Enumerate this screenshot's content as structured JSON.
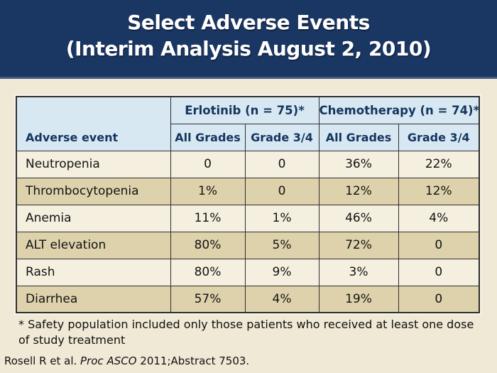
{
  "slide": {
    "title_line1": "Select Adverse Events",
    "title_line2": "(Interim Analysis August 2, 2010)",
    "footnote_line1": "* Safety population included only those patients who received at least one dose",
    "footnote_line2": "of study treatment",
    "citation": {
      "pre": "Rosell R et al. ",
      "italic": "Proc ASCO",
      "post": " 2011;Abstract 7503."
    }
  },
  "table": {
    "corner_label": "Adverse event",
    "groups": [
      {
        "label": "Erlotinib (n = 75)*"
      },
      {
        "label": "Chemotherapy (n = 74)*"
      }
    ],
    "subheaders": [
      "All Grades",
      "Grade 3/4",
      "All Grades",
      "Grade 3/4"
    ],
    "rows": [
      {
        "event": "Neutropenia",
        "values": [
          "0",
          "0",
          "36%",
          "22%"
        ]
      },
      {
        "event": "Thrombocytopenia",
        "values": [
          "1%",
          "0",
          "12%",
          "12%"
        ]
      },
      {
        "event": "Anemia",
        "values": [
          "11%",
          "1%",
          "46%",
          "4%"
        ]
      },
      {
        "event": "ALT elevation",
        "values": [
          "80%",
          "5%",
          "72%",
          "0"
        ]
      },
      {
        "event": "Rash",
        "values": [
          "80%",
          "9%",
          "3%",
          "0"
        ]
      },
      {
        "event": "Diarrhea",
        "values": [
          "57%",
          "4%",
          "19%",
          "0"
        ]
      }
    ]
  },
  "colors": {
    "title_band_navy": "#1A3663",
    "title_text": "#FFFFFF",
    "header_cell_blue": "#D8E8F3",
    "header_text_navy": "#14355E",
    "slide_background_cream": "#EFE9D5",
    "row_light": "#F4EFDE",
    "row_tan": "#DDD2AB",
    "table_border": "#2E2E2E",
    "body_text": "#131313"
  }
}
